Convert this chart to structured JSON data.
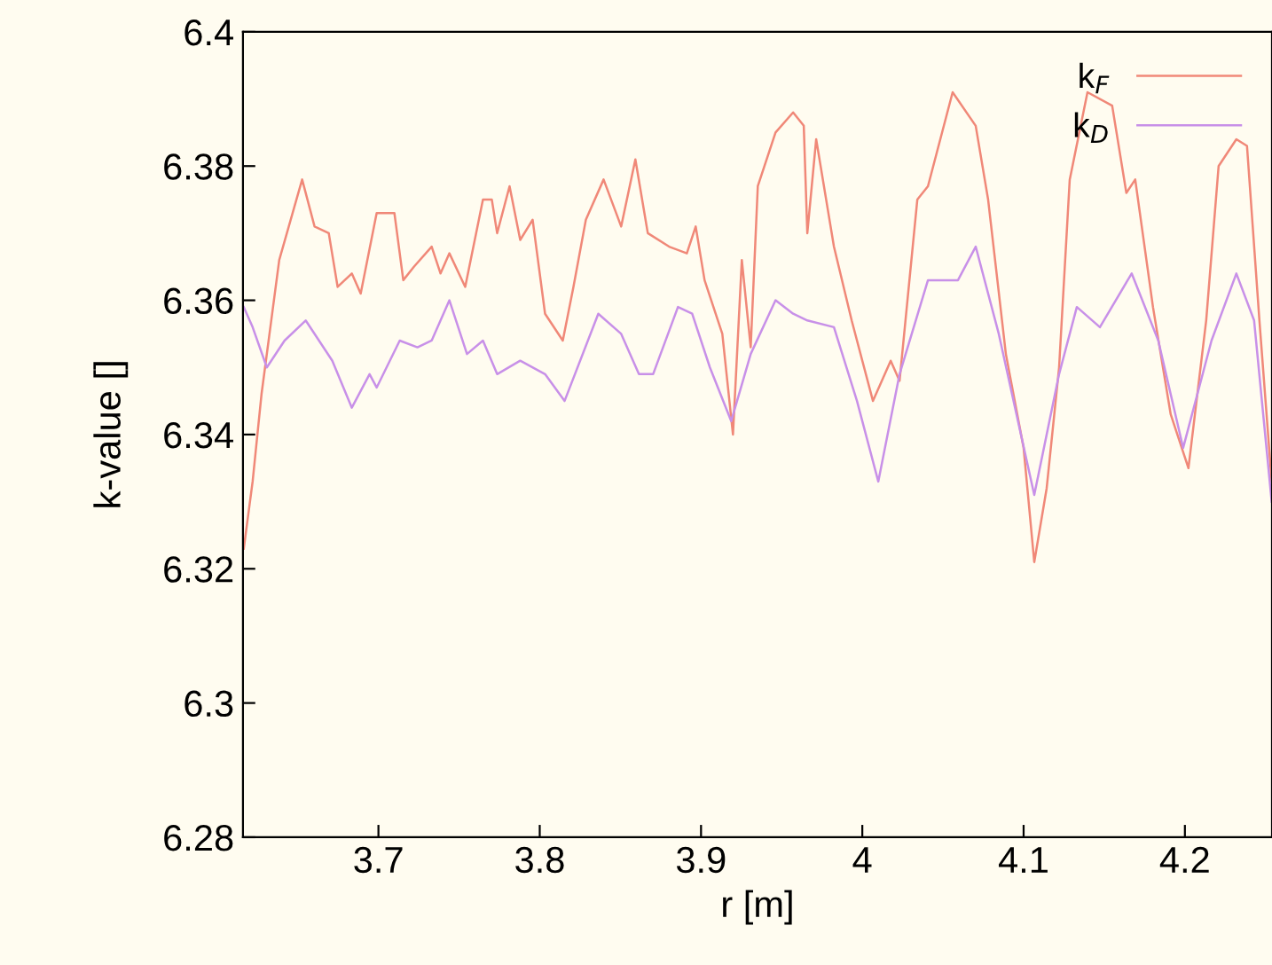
{
  "chart_data": {
    "type": "line",
    "xlabel": "r [m]",
    "ylabel": "k-value []",
    "xlim": [
      3.616,
      4.254
    ],
    "ylim": [
      6.28,
      6.4
    ],
    "xticks": [
      3.7,
      3.8,
      3.9,
      4,
      4.1,
      4.2
    ],
    "yticks": [
      6.28,
      6.3,
      6.32,
      6.34,
      6.36,
      6.38,
      6.4
    ],
    "grid": false,
    "legend": "top right",
    "marker": "none",
    "line_style": "solid",
    "series": [
      {
        "name": "k$_{F}$",
        "color": "#f08878",
        "x": [
          3.6165,
          3.622,
          3.6275,
          3.633,
          3.6385,
          3.6527,
          3.6604,
          3.6692,
          3.6747,
          3.6835,
          3.689,
          3.6989,
          3.7099,
          3.7154,
          3.722,
          3.733,
          3.7385,
          3.744,
          3.7538,
          3.7648,
          3.7703,
          3.7736,
          3.7813,
          3.7879,
          3.7956,
          3.8033,
          3.8143,
          3.8209,
          3.8286,
          3.8396,
          3.8505,
          3.8593,
          3.867,
          3.8802,
          3.8912,
          3.8967,
          3.9022,
          3.9132,
          3.9198,
          3.9253,
          3.9308,
          3.9352,
          3.9462,
          3.9571,
          3.9637,
          3.9659,
          3.9714,
          3.9824,
          3.9934,
          4.0066,
          4.0176,
          4.0231,
          4.0341,
          4.0407,
          4.056,
          4.0703,
          4.078,
          4.089,
          4.1,
          4.1066,
          4.1143,
          4.122,
          4.1286,
          4.1396,
          4.1549,
          4.1637,
          4.1692,
          4.1802,
          4.1912,
          4.2022,
          4.2132,
          4.2209,
          4.2319,
          4.2385,
          4.2462,
          4.2538
        ],
        "values": [
          6.323,
          6.333,
          6.346,
          6.356,
          6.366,
          6.378,
          6.371,
          6.37,
          6.362,
          6.364,
          6.361,
          6.373,
          6.373,
          6.363,
          6.365,
          6.368,
          6.364,
          6.367,
          6.362,
          6.375,
          6.375,
          6.37,
          6.377,
          6.369,
          6.372,
          6.358,
          6.354,
          6.362,
          6.372,
          6.378,
          6.371,
          6.381,
          6.37,
          6.368,
          6.367,
          6.371,
          6.363,
          6.355,
          6.34,
          6.366,
          6.353,
          6.377,
          6.385,
          6.388,
          6.386,
          6.37,
          6.384,
          6.368,
          6.357,
          6.345,
          6.351,
          6.348,
          6.375,
          6.377,
          6.391,
          6.386,
          6.375,
          6.352,
          6.338,
          6.321,
          6.332,
          6.35,
          6.378,
          6.391,
          6.389,
          6.376,
          6.378,
          6.359,
          6.343,
          6.335,
          6.357,
          6.38,
          6.384,
          6.383,
          6.357,
          6.333
        ]
      },
      {
        "name": "k$_{D}$",
        "color": "#c890e8",
        "x": [
          3.6165,
          3.622,
          3.6308,
          3.6418,
          3.6549,
          3.6714,
          3.6835,
          3.6945,
          3.6989,
          3.7132,
          3.7242,
          3.733,
          3.744,
          3.7549,
          3.7648,
          3.7736,
          3.7879,
          3.8033,
          3.8154,
          3.8363,
          3.8505,
          3.8615,
          3.8703,
          3.8857,
          3.8945,
          3.9055,
          3.9187,
          3.9308,
          3.9462,
          3.9571,
          3.9659,
          3.9824,
          3.9967,
          4.0099,
          4.0231,
          4.0407,
          4.0593,
          4.0703,
          4.0846,
          4.1066,
          4.122,
          4.133,
          4.1473,
          4.167,
          4.1835,
          4.1989,
          4.2165,
          4.2319,
          4.2429,
          4.2538
        ],
        "values": [
          6.359,
          6.356,
          6.35,
          6.354,
          6.357,
          6.351,
          6.344,
          6.349,
          6.347,
          6.354,
          6.353,
          6.354,
          6.36,
          6.352,
          6.354,
          6.349,
          6.351,
          6.349,
          6.345,
          6.358,
          6.355,
          6.349,
          6.349,
          6.359,
          6.358,
          6.35,
          6.342,
          6.352,
          6.36,
          6.358,
          6.357,
          6.356,
          6.345,
          6.333,
          6.349,
          6.363,
          6.363,
          6.368,
          6.355,
          6.331,
          6.349,
          6.359,
          6.356,
          6.364,
          6.354,
          6.338,
          6.354,
          6.364,
          6.357,
          6.33
        ]
      }
    ]
  }
}
